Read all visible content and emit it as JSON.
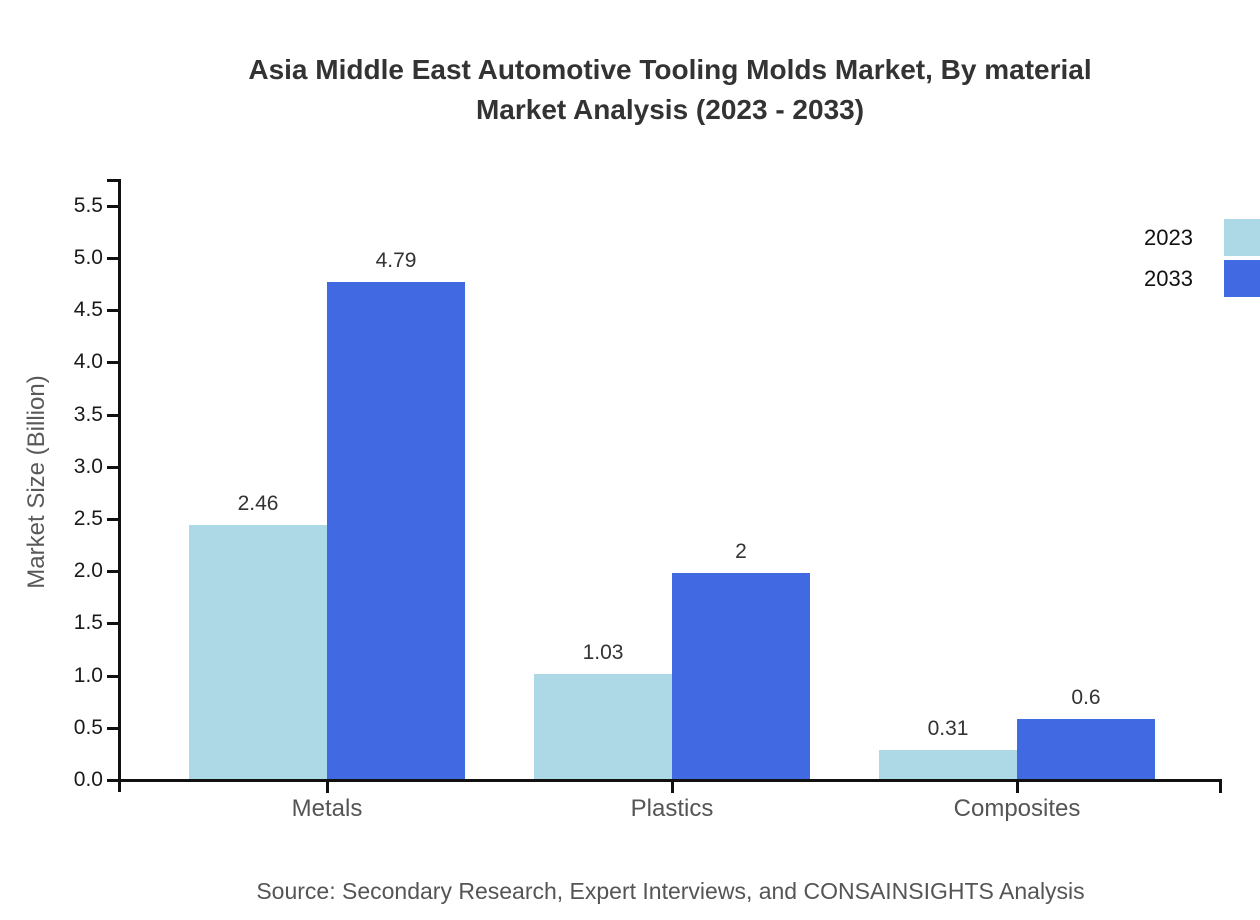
{
  "title": {
    "line1": "Asia Middle East Automotive Tooling Molds Market, By material",
    "line2": "Market Analysis (2023 - 2033)"
  },
  "source_note": "Source: Secondary Research, Expert Interviews, and CONSAINSIGHTS Analysis",
  "chart_data": {
    "type": "bar",
    "title": "Asia Middle East Automotive Tooling Molds Market, By material Market Analysis (2023 - 2033)",
    "categories": [
      "Metals",
      "Plastics",
      "Composites"
    ],
    "series": [
      {
        "name": "2023",
        "color": "#ADD8E6",
        "values": [
          2.46,
          1.03,
          0.31
        ],
        "labels": [
          "2.46",
          "1.03",
          "0.31"
        ]
      },
      {
        "name": "2033",
        "color": "#4169E1",
        "values": [
          4.79,
          2.0,
          0.6
        ],
        "labels": [
          "4.79",
          "2",
          "0.6"
        ]
      }
    ],
    "xlabel": "",
    "ylabel": "Market Size (Billion)",
    "ylim": [
      0,
      5.5
    ],
    "ytick_step": 0.5,
    "ytick_labels": [
      "0.0",
      "0.5",
      "1.0",
      "1.5",
      "2.0",
      "2.5",
      "3.0",
      "3.5",
      "4.0",
      "4.5",
      "5.0",
      "5.5"
    ],
    "grid": false,
    "background": "#ffffff",
    "legend_position": "top-right",
    "axis_color": "#111111"
  }
}
